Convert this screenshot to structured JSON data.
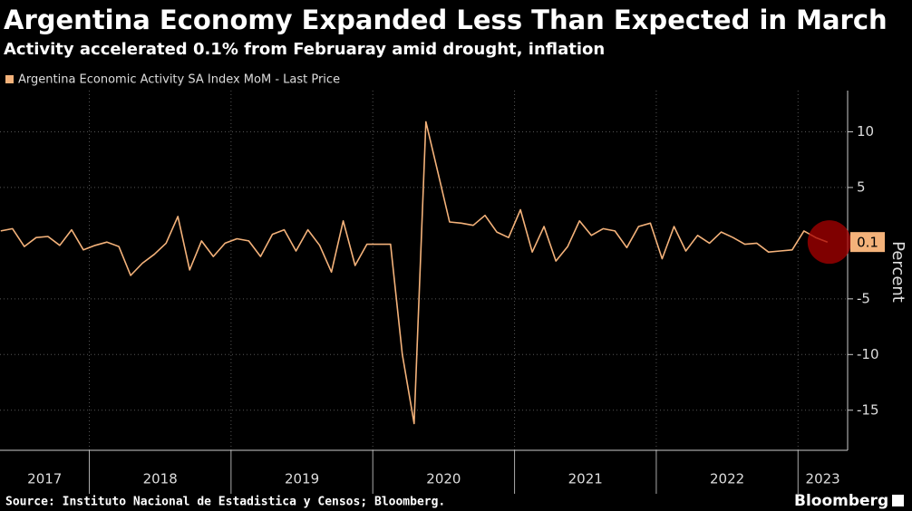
{
  "chart_data": {
    "type": "line",
    "title": "Argentina Economy Expanded Less Than Expected in March",
    "subtitle": "Activity accelerated 0.1% from Februaray amid drought, inflation",
    "y_label": "Percent",
    "source": "Source: Instituto Nacional de Estadistica y Censos; Bloomberg.",
    "brand": "Bloomberg",
    "x": [
      2017.375,
      2017.4583,
      2017.5417,
      2017.625,
      2017.7083,
      2017.7917,
      2017.875,
      2017.9583,
      2018.0417,
      2018.125,
      2018.2083,
      2018.2917,
      2018.375,
      2018.4583,
      2018.5417,
      2018.625,
      2018.7083,
      2018.7917,
      2018.875,
      2018.9583,
      2019.0417,
      2019.125,
      2019.2083,
      2019.2917,
      2019.375,
      2019.4583,
      2019.5417,
      2019.625,
      2019.7083,
      2019.7917,
      2019.875,
      2019.9583,
      2020.0417,
      2020.125,
      2020.2083,
      2020.2917,
      2020.375,
      2020.4583,
      2020.5417,
      2020.625,
      2020.7083,
      2020.7917,
      2020.875,
      2020.9583,
      2021.0417,
      2021.125,
      2021.2083,
      2021.2917,
      2021.375,
      2021.4583,
      2021.5417,
      2021.625,
      2021.7083,
      2021.7917,
      2021.875,
      2021.9583,
      2022.0417,
      2022.125,
      2022.2083,
      2022.2917,
      2022.375,
      2022.4583,
      2022.5417,
      2022.625,
      2022.7083,
      2022.7917,
      2022.875,
      2022.9583,
      2023.0417,
      2023.125,
      2023.2083
    ],
    "series": [
      {
        "name": "Argentina Economic Activity SA Index MoM - Last Price",
        "color": "#f4b27a",
        "values": [
          1.1,
          1.3,
          -0.3,
          0.5,
          0.6,
          -0.2,
          1.2,
          -0.6,
          -0.2,
          0.1,
          -0.3,
          -2.9,
          -1.8,
          -1.0,
          0.0,
          2.4,
          -2.4,
          0.2,
          -1.2,
          0.0,
          0.4,
          0.2,
          -1.2,
          0.8,
          1.2,
          -0.7,
          1.2,
          -0.2,
          -2.6,
          2.0,
          -2.0,
          -0.1,
          -0.1,
          -0.1,
          -10,
          -16.2,
          10.9,
          6.4,
          1.9,
          1.8,
          1.6,
          2.5,
          1.0,
          0.5,
          3.0,
          -0.8,
          1.5,
          -1.6,
          -0.3,
          2.0,
          0.7,
          1.3,
          1.1,
          -0.4,
          1.5,
          1.8,
          -1.4,
          1.5,
          -0.7,
          0.7,
          0.0,
          1.0,
          0.5,
          -0.1,
          0.0,
          -0.8,
          -0.7,
          -0.6,
          1.1,
          0.5,
          0.1
        ]
      }
    ],
    "xlim": [
      2017.37,
      2023.35
    ],
    "xticks": [
      2017,
      2018,
      2019,
      2020,
      2021,
      2022,
      2023
    ],
    "ylim": [
      -18.6,
      13.7
    ],
    "yticks": [
      -15,
      -10,
      -5,
      5,
      10
    ],
    "grid": true
  }
}
